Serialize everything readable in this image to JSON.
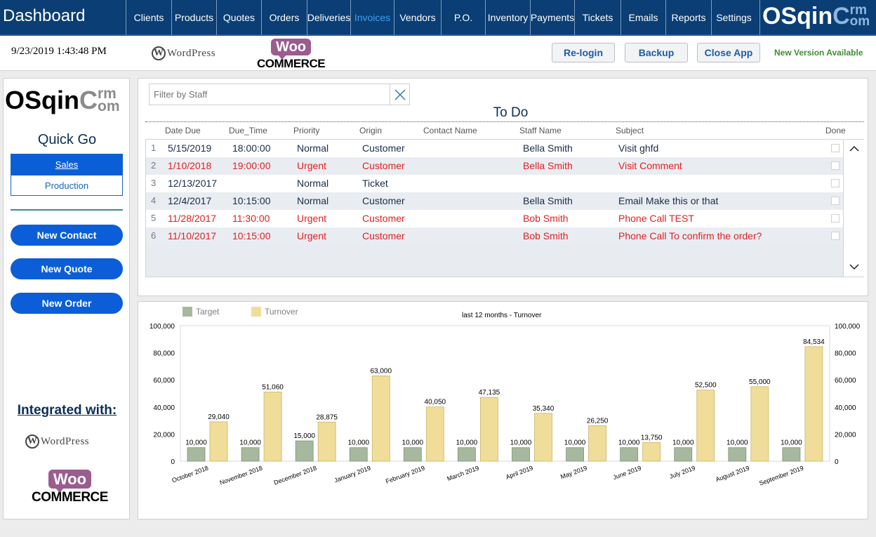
{
  "app": {
    "title": "Dashboard"
  },
  "nav": [
    {
      "label": "Clients",
      "active": false
    },
    {
      "label": "Products",
      "active": false
    },
    {
      "label": "Quotes",
      "active": false
    },
    {
      "label": "Orders",
      "active": false
    },
    {
      "label": "Deliveries",
      "active": false
    },
    {
      "label": "Invoices",
      "active": true
    },
    {
      "label": "Vendors",
      "active": false
    },
    {
      "label": "P.O.",
      "active": false
    },
    {
      "label": "Inventory",
      "active": false
    },
    {
      "label": "Payments",
      "active": false
    },
    {
      "label": "Tickets",
      "active": false
    },
    {
      "label": "Emails",
      "active": false
    },
    {
      "label": "Reports",
      "active": false
    },
    {
      "label": "Settings",
      "active": false
    }
  ],
  "brand": {
    "main": "OSqin",
    "c": "C",
    "rm": "rm",
    "om": "om"
  },
  "infobar": {
    "datetime": "9/23/2019 1:43:48 PM",
    "relogin": "Re-login",
    "backup": "Backup",
    "close": "Close App",
    "new_version": "New Version Available"
  },
  "logos": {
    "wp_w": "W",
    "wp_text": "WordPress",
    "woo": "Woo",
    "commerce": "COMMERCE"
  },
  "left": {
    "quickgo": "Quick Go",
    "tabs": [
      "Sales",
      "Production"
    ],
    "buttons": [
      "New Contact",
      "New Quote",
      "New Order"
    ],
    "integrated": "Integrated with:"
  },
  "todo": {
    "filter_placeholder": "Filter by Staff",
    "title": "To Do",
    "columns": [
      "Date Due",
      "Due_Time",
      "Priority",
      "Origin",
      "Contact Name",
      "Staff Name",
      "Subject",
      "Done"
    ],
    "rows": [
      {
        "n": "1",
        "date": "5/15/2019",
        "time": "18:00:00",
        "priority": "Normal",
        "origin": "Customer",
        "contact": "",
        "staff": "Bella Smith",
        "subject": "Visit ghfd"
      },
      {
        "n": "2",
        "date": "1/10/2018",
        "time": "19:00:00",
        "priority": "Urgent",
        "origin": "Customer",
        "contact": "",
        "staff": "Bella Smith",
        "subject": "Visit Comment"
      },
      {
        "n": "3",
        "date": "12/13/2017",
        "time": "",
        "priority": "Normal",
        "origin": "Ticket",
        "contact": "",
        "staff": "",
        "subject": ""
      },
      {
        "n": "4",
        "date": "12/4/2017",
        "time": "10:15:00",
        "priority": "Normal",
        "origin": "Customer",
        "contact": "",
        "staff": "Bella Smith",
        "subject": "Email Make this or that"
      },
      {
        "n": "5",
        "date": "11/28/2017",
        "time": "11:30:00",
        "priority": "Urgent",
        "origin": "Customer",
        "contact": "",
        "staff": "Bob Smith",
        "subject": "Phone Call TEST"
      },
      {
        "n": "6",
        "date": "11/10/2017",
        "time": "10:15:00",
        "priority": "Urgent",
        "origin": "Customer",
        "contact": "",
        "staff": "Bob Smith",
        "subject": "Phone Call To confirm the order?"
      }
    ]
  },
  "colors": {
    "target": "#a6b99e",
    "turnover": "#f1dd9a",
    "urgent": "#e02020",
    "nav_bg": "#0a3e74"
  },
  "chart_data": {
    "type": "bar",
    "title": "last 12 months - Turnover",
    "categories": [
      "October 2018",
      "November 2018",
      "December 2018",
      "January 2019",
      "February 2019",
      "March 2019",
      "April 2019",
      "May 2019",
      "June 2019",
      "July 2019",
      "August 2019",
      "September 2019"
    ],
    "series": [
      {
        "name": "Target",
        "values": [
          10000,
          10000,
          15000,
          10000,
          10000,
          10000,
          10000,
          10000,
          10000,
          10000,
          10000,
          10000
        ]
      },
      {
        "name": "Turnover",
        "values": [
          29040,
          51060,
          28875,
          63000,
          40050,
          47135,
          35340,
          26250,
          13750,
          52500,
          55000,
          84534
        ]
      }
    ],
    "ylim": [
      0,
      100000
    ],
    "yticks": [
      0,
      20000,
      40000,
      60000,
      80000,
      100000
    ],
    "legend": "top-left",
    "xlabel": "",
    "ylabel": ""
  }
}
